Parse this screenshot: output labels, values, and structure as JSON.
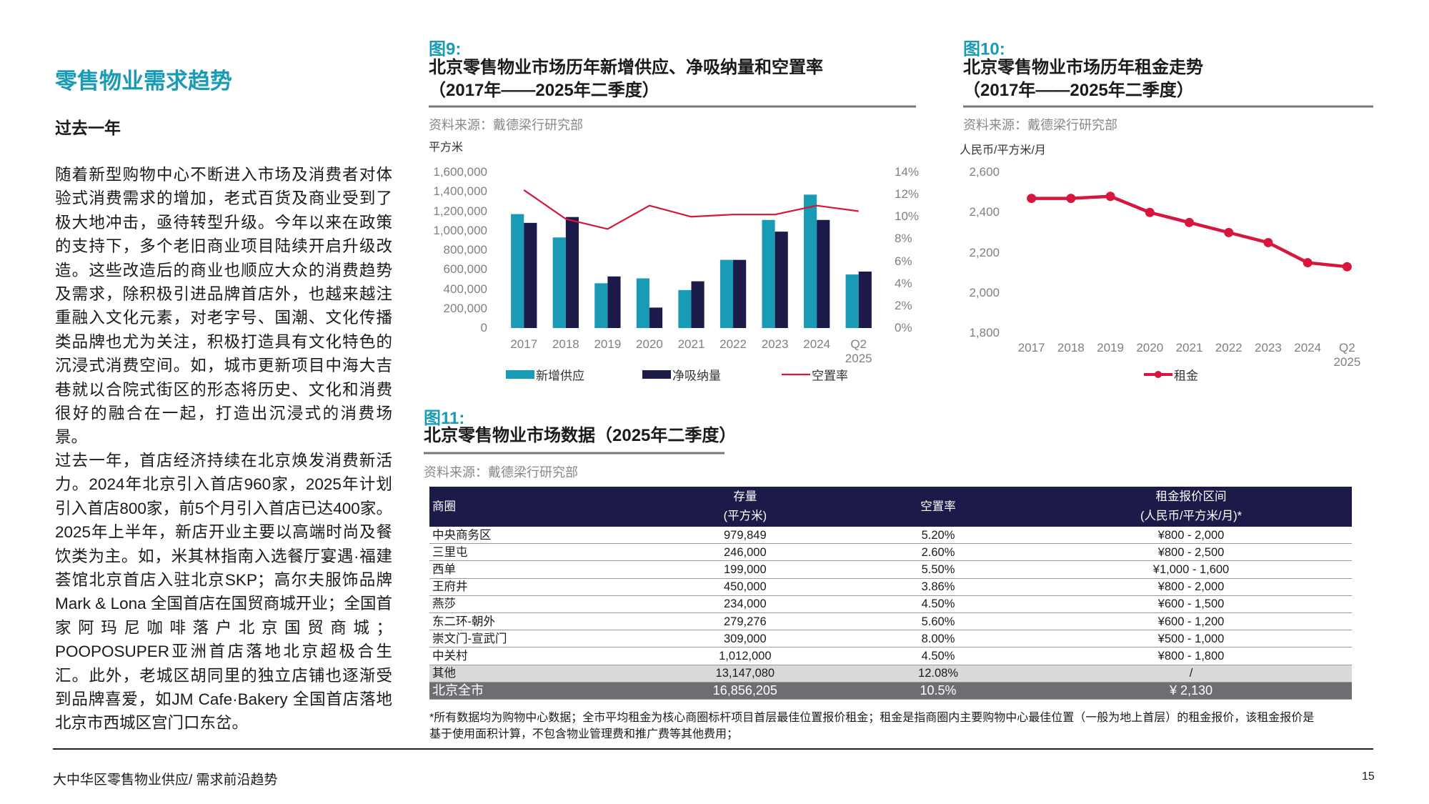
{
  "header": {
    "title": "零售物业需求趋势",
    "subtitle": "过去一年"
  },
  "body": {
    "paragraphs": [
      "随着新型购物中心不断进入市场及消费者对体验式消费需求的增加，老式百货及商业受到了极大地冲击，亟待转型升级。今年以来在政策的支持下，多个老旧商业项目陆续开启升级改造。这些改造后的商业也顺应大众的消费趋势及需求，除积极引进品牌首店外，也越来越注重融入文化元素，对老字号、国潮、文化传播类品牌也尤为关注，积极打造具有文化特色的沉浸式消费空间。如，城市更新项目中海大吉巷就以合院式街区的形态将历史、文化和消费很好的融合在一起，打造出沉浸式的消费场景。",
      "过去一年，首店经济持续在北京焕发消费新活力。2024年北京引入首店960家，2025年计划引入首店800家，前5个月引入首店已达400家。2025年上半年，新店开业主要以高端时尚及餐饮类为主。如，米其林指南入选餐厅宴遇·福建荟馆北京首店入驻北京SKP；高尔夫服饰品牌 Mark & Lona 全国首店在国贸商城开业；全国首家阿玛尼咖啡落户北京国贸商城；POOPOSUPER亚洲首店落地北京超极合生汇。此外，老城区胡同里的独立店铺也逐渐受到品牌喜爱，如JM Cafe·Bakery 全国首店落地北京市西城区宫门口东岔。"
    ]
  },
  "chart_data": [
    {
      "type": "bar",
      "figure_label": "图9:",
      "title": "北京零售物业市场历年新增供应、净吸纳量和空置率\n（2017年——2025年二季度）",
      "source": "资料来源：戴德梁行研究部",
      "y_label": "平方米",
      "categories": [
        "2017",
        "2018",
        "2019",
        "2020",
        "2021",
        "2022",
        "2023",
        "2024",
        "Q2\n2025"
      ],
      "series": [
        {
          "name": "新增供应",
          "color": "#1a9bb5",
          "values": [
            1170000,
            930000,
            460000,
            510000,
            390000,
            700000,
            1110000,
            1370000,
            550000
          ]
        },
        {
          "name": "净吸纳量",
          "color": "#1c1a48",
          "values": [
            1080000,
            1140000,
            530000,
            210000,
            480000,
            700000,
            990000,
            1110000,
            580000
          ]
        },
        {
          "name": "空置率",
          "color": "#d6163c",
          "type": "line",
          "axis": "y2",
          "values": [
            12.4,
            9.8,
            8.9,
            11.0,
            10.0,
            10.2,
            10.2,
            11.0,
            10.5
          ]
        }
      ],
      "ylim": [
        0,
        1600000
      ],
      "yticks": [
        0,
        {
          "value": 200000,
          "label": "200,000"
        },
        {
          "value": 400000,
          "label": "400,000"
        },
        {
          "value": 600000,
          "label": "600,000"
        },
        {
          "value": 800000,
          "label": "800,000"
        },
        {
          "value": 1000000,
          "label": "1,000,000"
        },
        {
          "value": 1200000,
          "label": "1,200,000"
        },
        {
          "value": 1400000,
          "label": "1,400,000"
        },
        {
          "value": 1600000,
          "label": "1,600,000"
        }
      ],
      "y2lim": [
        0,
        14
      ],
      "y2ticks": [
        {
          "value": 0,
          "label": "0%"
        },
        {
          "value": 2,
          "label": "2%"
        },
        {
          "value": 4,
          "label": "4%"
        },
        {
          "value": 6,
          "label": "6%"
        },
        {
          "value": 8,
          "label": "8%"
        },
        {
          "value": 10,
          "label": "10%"
        },
        {
          "value": 12,
          "label": "12%"
        },
        {
          "value": 14,
          "label": "14%"
        }
      ]
    },
    {
      "type": "line",
      "figure_label": "图10:",
      "title": "北京零售物业市场历年租金走势\n（2017年——2025年二季度）",
      "source": "资料来源：戴德梁行研究部",
      "y_label": "人民币/平方米/月",
      "categories": [
        "2017",
        "2018",
        "2019",
        "2020",
        "2021",
        "2022",
        "2023",
        "2024",
        "Q2\n2025"
      ],
      "series": [
        {
          "name": "租金",
          "color": "#d6163c",
          "values": [
            2470,
            2470,
            2480,
            2400,
            2350,
            2300,
            2250,
            2150,
            2130
          ]
        }
      ],
      "ylim": [
        1800,
        2600
      ],
      "yticks": [
        {
          "value": 1800,
          "label": "1,800"
        },
        {
          "value": 2000,
          "label": "2,000"
        },
        {
          "value": 2200,
          "label": "2,200"
        },
        {
          "value": 2400,
          "label": "2,400"
        },
        {
          "value": 2600,
          "label": "2,600"
        }
      ]
    }
  ],
  "table": {
    "figure_label": "图11:",
    "title": "北京零售物业市场数据（2025年二季度）",
    "source": "资料来源：戴德梁行研究部",
    "columns": [
      "商圈",
      "存量\n(平方米)",
      "空置率",
      "租金报价区间\n(人民币/平方米/月)*"
    ],
    "rows": [
      [
        "中央商务区",
        "979,849",
        "5.20%",
        "¥800 - 2,000"
      ],
      [
        "三里屯",
        "246,000",
        "2.60%",
        "¥800 - 2,500"
      ],
      [
        "西单",
        "199,000",
        "5.50%",
        "¥1,000 - 1,600"
      ],
      [
        "王府井",
        "450,000",
        "3.86%",
        "¥800 - 2,000"
      ],
      [
        "燕莎",
        "234,000",
        "4.50%",
        "¥600 - 1,500"
      ],
      [
        "东二环-朝外",
        "279,276",
        "5.60%",
        "¥600 - 1,200"
      ],
      [
        "崇文门-宣武门",
        "309,000",
        "8.00%",
        "¥500 - 1,000"
      ],
      [
        "中关村",
        "1,012,000",
        "4.50%",
        "¥800 - 1,800"
      ],
      [
        "其他",
        "13,147,080",
        "12.08%",
        "/"
      ],
      [
        "北京全市",
        "16,856,205",
        "10.5%",
        "¥ 2,130"
      ]
    ],
    "footnote": "*所有数据均为购物中心数据；全市平均租金为核心商圈标杆项目首层最佳位置报价租金；租金是指商圈内主要购物中心最佳位置（一般为地上首层）的租金报价，该租金报价是基于使用面积计算，不包含物业管理费和推广费等其他费用；"
  },
  "footer": {
    "text": "大中华区零售物业供应/ 需求前沿趋势",
    "page_number": "15"
  }
}
